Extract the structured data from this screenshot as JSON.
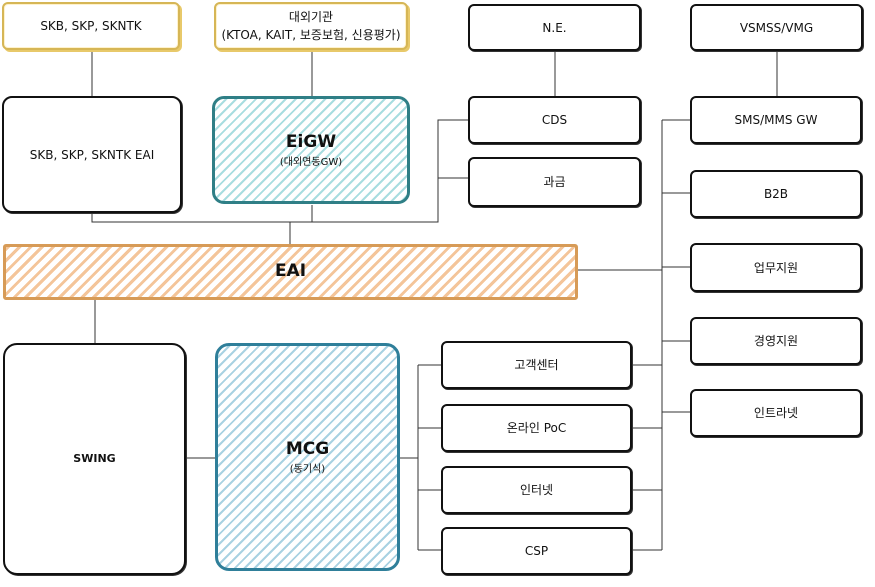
{
  "boxes": {
    "skb_top": "SKB, SKP, SKNTK",
    "ext_org_line1": "대외기관",
    "ext_org_line2": "(KTOA, KAIT, 보증보험, 신용평가)",
    "ne": "N.E.",
    "vsmss": "VSMSS/VMG",
    "skb_eai": "SKB, SKP, SKNTK EAI",
    "eigw_title": "EiGW",
    "eigw_sub": "(대외연동GW)",
    "cds": "CDS",
    "billing": "과금",
    "sms_gw": "SMS/MMS GW",
    "b2b": "B2B",
    "biz_support": "업무지원",
    "mgmt_support": "경영지원",
    "intranet": "인트라넷",
    "eai": "EAI",
    "swing": "SWING",
    "mcg_title": "MCG",
    "mcg_sub": "(동기식)",
    "customer_center": "고객센터",
    "online_poc": "온라인 PoC",
    "internet": "인터넷",
    "csp": "CSP"
  },
  "colors": {
    "eigw": "#a8dde0",
    "mcg": "#a9d2e2",
    "eai": "#f4c59a",
    "external": "#d6b656"
  }
}
